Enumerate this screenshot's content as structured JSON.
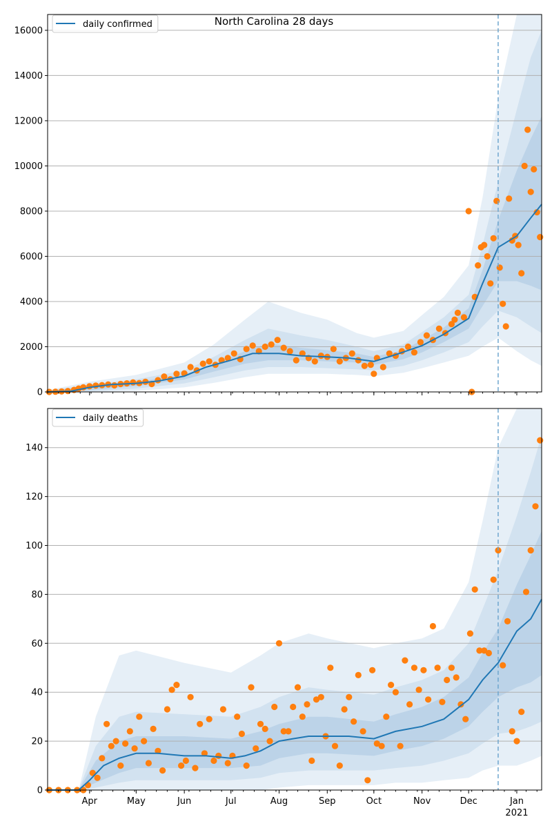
{
  "figure_title": "North Carolina 28 days",
  "colors": {
    "line": "#1f77b4",
    "points": "#ff7f0e",
    "band_outer": "#e6eff7",
    "band_mid": "#d2e2f0",
    "band_inner": "#bcd3e8",
    "grid": "#b0b0b0",
    "forecast_marker": "#6fa6cf"
  },
  "x_axis": {
    "month_ticks": [
      "Apr",
      "May",
      "Jun",
      "Jul",
      "Aug",
      "Sep",
      "Oct",
      "Nov",
      "Dec",
      "Jan"
    ],
    "year_label": "2021"
  },
  "chart_data": [
    {
      "type": "line",
      "legend": "daily confirmed",
      "legend_position": "top-left",
      "grid": "horizontal",
      "x_range": [
        "2020-03-05",
        "2021-01-17"
      ],
      "forecast_start": "2020-12-20",
      "ylim": [
        0,
        16700
      ],
      "yticks": [
        "0",
        "2000",
        "4000",
        "6000",
        "8000",
        "10000",
        "12000",
        "14000",
        "16000"
      ],
      "series": [
        {
          "kind": "line",
          "x": [
            "2020-03-05",
            "2020-03-20",
            "2020-04-01",
            "2020-04-15",
            "2020-05-01",
            "2020-05-15",
            "2020-06-01",
            "2020-06-15",
            "2020-07-01",
            "2020-07-15",
            "2020-08-01",
            "2020-08-15",
            "2020-09-01",
            "2020-09-15",
            "2020-10-01",
            "2020-10-15",
            "2020-11-01",
            "2020-11-15",
            "2020-12-01",
            "2020-12-10",
            "2020-12-20",
            "2021-01-01",
            "2021-01-10",
            "2021-01-17"
          ],
          "values": [
            0,
            30,
            200,
            330,
            380,
            480,
            700,
            1100,
            1400,
            1700,
            1700,
            1600,
            1550,
            1500,
            1350,
            1650,
            2050,
            2550,
            3250,
            4800,
            6400,
            6900,
            7700,
            8300
          ]
        },
        {
          "kind": "band",
          "level": "outer",
          "x": [
            "2020-03-05",
            "2020-04-01",
            "2020-05-01",
            "2020-06-01",
            "2020-06-20",
            "2020-07-10",
            "2020-07-25",
            "2020-08-15",
            "2020-09-01",
            "2020-09-20",
            "2020-10-01",
            "2020-10-20",
            "2020-11-01",
            "2020-11-15",
            "2020-12-01",
            "2020-12-10",
            "2020-12-20",
            "2021-01-01",
            "2021-01-10",
            "2021-01-17"
          ],
          "upper": [
            80,
            450,
            750,
            1300,
            2100,
            3200,
            4000,
            3500,
            3200,
            2600,
            2400,
            2700,
            3400,
            4200,
            5600,
            8600,
            13000,
            16700,
            16700,
            16700
          ],
          "lower": [
            0,
            0,
            50,
            200,
            400,
            650,
            800,
            800,
            800,
            750,
            700,
            850,
            1050,
            1300,
            1600,
            2000,
            2400,
            1800,
            1400,
            1150
          ]
        },
        {
          "kind": "band",
          "level": "mid",
          "x": [
            "2020-03-05",
            "2020-04-01",
            "2020-05-01",
            "2020-06-01",
            "2020-06-20",
            "2020-07-10",
            "2020-07-25",
            "2020-08-15",
            "2020-09-01",
            "2020-09-20",
            "2020-10-01",
            "2020-10-20",
            "2020-11-01",
            "2020-11-15",
            "2020-12-01",
            "2020-12-10",
            "2020-12-20",
            "2021-01-01",
            "2021-01-10",
            "2021-01-17"
          ],
          "upper": [
            50,
            330,
            560,
            950,
            1550,
            2300,
            2800,
            2500,
            2300,
            2000,
            1800,
            2100,
            2650,
            3300,
            4300,
            6500,
            9300,
            12500,
            14800,
            16000
          ],
          "lower": [
            0,
            20,
            150,
            380,
            650,
            950,
            1100,
            1100,
            1050,
            1000,
            950,
            1150,
            1400,
            1750,
            2200,
            2900,
            3600,
            3300,
            2900,
            2600
          ]
        },
        {
          "kind": "band",
          "level": "inner",
          "x": [
            "2020-03-05",
            "2020-04-01",
            "2020-05-01",
            "2020-06-01",
            "2020-06-20",
            "2020-07-10",
            "2020-07-25",
            "2020-08-15",
            "2020-09-01",
            "2020-09-20",
            "2020-10-01",
            "2020-10-20",
            "2020-11-01",
            "2020-11-15",
            "2020-12-01",
            "2020-12-10",
            "2020-12-20",
            "2021-01-01",
            "2021-01-10",
            "2021-01-17"
          ],
          "upper": [
            30,
            250,
            430,
            780,
            1250,
            1800,
            2150,
            1950,
            1850,
            1700,
            1550,
            1850,
            2300,
            2850,
            3700,
            5400,
            7600,
            9800,
            11200,
            12200
          ],
          "lower": [
            0,
            80,
            260,
            550,
            900,
            1250,
            1400,
            1400,
            1350,
            1300,
            1200,
            1450,
            1750,
            2200,
            2800,
            3800,
            4900,
            4900,
            4700,
            4500
          ]
        }
      ],
      "points": {
        "x": [
          "2020-03-06",
          "2020-03-10",
          "2020-03-14",
          "2020-03-18",
          "2020-03-22",
          "2020-03-25",
          "2020-03-28",
          "2020-04-01",
          "2020-04-05",
          "2020-04-09",
          "2020-04-13",
          "2020-04-17",
          "2020-04-21",
          "2020-04-25",
          "2020-04-29",
          "2020-05-03",
          "2020-05-07",
          "2020-05-11",
          "2020-05-15",
          "2020-05-19",
          "2020-05-23",
          "2020-05-27",
          "2020-06-01",
          "2020-06-05",
          "2020-06-09",
          "2020-06-13",
          "2020-06-17",
          "2020-06-21",
          "2020-06-25",
          "2020-06-29",
          "2020-07-03",
          "2020-07-07",
          "2020-07-11",
          "2020-07-15",
          "2020-07-19",
          "2020-07-23",
          "2020-07-27",
          "2020-07-31",
          "2020-08-04",
          "2020-08-08",
          "2020-08-12",
          "2020-08-16",
          "2020-08-20",
          "2020-08-24",
          "2020-08-28",
          "2020-09-01",
          "2020-09-05",
          "2020-09-09",
          "2020-09-13",
          "2020-09-17",
          "2020-09-21",
          "2020-09-25",
          "2020-09-29",
          "2020-10-01",
          "2020-10-03",
          "2020-10-07",
          "2020-10-11",
          "2020-10-15",
          "2020-10-19",
          "2020-10-23",
          "2020-10-27",
          "2020-10-31",
          "2020-11-04",
          "2020-11-08",
          "2020-11-12",
          "2020-11-16",
          "2020-11-20",
          "2020-11-22",
          "2020-11-24",
          "2020-11-28",
          "2020-12-01",
          "2020-12-03",
          "2020-12-05",
          "2020-12-07",
          "2020-12-09",
          "2020-12-11",
          "2020-12-13",
          "2020-12-15",
          "2020-12-17",
          "2020-12-19",
          "2020-12-21",
          "2020-12-23",
          "2020-12-25",
          "2020-12-27",
          "2020-12-29",
          "2020-12-31",
          "2021-01-02",
          "2021-01-04",
          "2021-01-06",
          "2021-01-08",
          "2021-01-10",
          "2021-01-12",
          "2021-01-14",
          "2021-01-16"
        ],
        "values": [
          0,
          10,
          20,
          40,
          90,
          150,
          200,
          250,
          280,
          300,
          330,
          290,
          350,
          380,
          420,
          390,
          450,
          350,
          520,
          680,
          560,
          800,
          820,
          1100,
          950,
          1250,
          1350,
          1200,
          1400,
          1500,
          1700,
          1450,
          1900,
          2050,
          1800,
          2000,
          2100,
          2300,
          1950,
          1800,
          1400,
          1700,
          1500,
          1350,
          1600,
          1550,
          1900,
          1350,
          1500,
          1700,
          1400,
          1150,
          1200,
          800,
          1500,
          1100,
          1700,
          1600,
          1800,
          2000,
          1750,
          2200,
          2500,
          2300,
          2800,
          2600,
          3000,
          3200,
          3500,
          3300,
          8000,
          0,
          4200,
          5600,
          6400,
          6500,
          6000,
          4800,
          6800,
          8450,
          5500,
          3900,
          2900,
          8550,
          6700,
          6900,
          6500,
          5250,
          10000,
          11600,
          8850,
          9850,
          7950,
          6850
        ]
      }
    },
    {
      "type": "line",
      "legend": "daily deaths",
      "legend_position": "top-left",
      "grid": "horizontal",
      "x_range": [
        "2020-03-05",
        "2021-01-17"
      ],
      "forecast_start": "2020-12-20",
      "ylim": [
        0,
        156
      ],
      "yticks": [
        "0",
        "20",
        "40",
        "60",
        "80",
        "100",
        "120",
        "140"
      ],
      "series": [
        {
          "kind": "line",
          "x": [
            "2020-03-05",
            "2020-03-25",
            "2020-04-01",
            "2020-04-10",
            "2020-04-20",
            "2020-05-01",
            "2020-05-15",
            "2020-06-01",
            "2020-06-15",
            "2020-07-01",
            "2020-07-10",
            "2020-07-20",
            "2020-08-01",
            "2020-08-10",
            "2020-08-20",
            "2020-09-01",
            "2020-09-15",
            "2020-10-01",
            "2020-10-15",
            "2020-11-01",
            "2020-11-15",
            "2020-12-01",
            "2020-12-10",
            "2020-12-20",
            "2021-01-01",
            "2021-01-10",
            "2021-01-17"
          ],
          "values": [
            0,
            0,
            4,
            10,
            13,
            15,
            15,
            14,
            14,
            13,
            14,
            16,
            20,
            21,
            22,
            22,
            22,
            21,
            24,
            26,
            29,
            37,
            45,
            52,
            65,
            70,
            78
          ]
        },
        {
          "kind": "band",
          "level": "outer",
          "x": [
            "2020-03-05",
            "2020-03-25",
            "2020-04-05",
            "2020-04-20",
            "2020-05-01",
            "2020-06-01",
            "2020-07-01",
            "2020-07-20",
            "2020-08-01",
            "2020-08-20",
            "2020-09-01",
            "2020-10-01",
            "2020-10-15",
            "2020-11-01",
            "2020-11-15",
            "2020-12-01",
            "2020-12-10",
            "2020-12-20",
            "2021-01-01",
            "2021-01-10",
            "2021-01-17"
          ],
          "upper": [
            0,
            0,
            30,
            55,
            57,
            52,
            48,
            55,
            60,
            64,
            62,
            58,
            60,
            62,
            66,
            85,
            110,
            140,
            156,
            156,
            156
          ],
          "lower": [
            0,
            0,
            0,
            0,
            0,
            0,
            0,
            0,
            1,
            2,
            2,
            2,
            3,
            3,
            4,
            5,
            8,
            10,
            10,
            12,
            14
          ]
        },
        {
          "kind": "band",
          "level": "mid",
          "x": [
            "2020-03-05",
            "2020-03-25",
            "2020-04-05",
            "2020-04-20",
            "2020-05-01",
            "2020-06-01",
            "2020-07-01",
            "2020-07-20",
            "2020-08-01",
            "2020-08-20",
            "2020-09-01",
            "2020-10-01",
            "2020-10-15",
            "2020-11-01",
            "2020-11-15",
            "2020-12-01",
            "2020-12-10",
            "2020-12-20",
            "2021-01-01",
            "2021-01-10",
            "2021-01-17"
          ],
          "upper": [
            0,
            0,
            18,
            30,
            32,
            31,
            30,
            34,
            38,
            42,
            41,
            39,
            42,
            45,
            49,
            60,
            74,
            90,
            112,
            130,
            145
          ],
          "lower": [
            0,
            0,
            1,
            3,
            4,
            4,
            4,
            5,
            7,
            8,
            8,
            8,
            9,
            10,
            12,
            15,
            19,
            23,
            24,
            26,
            28
          ]
        },
        {
          "kind": "band",
          "level": "inner",
          "x": [
            "2020-03-05",
            "2020-03-25",
            "2020-04-05",
            "2020-04-20",
            "2020-05-01",
            "2020-06-01",
            "2020-07-01",
            "2020-07-20",
            "2020-08-01",
            "2020-08-20",
            "2020-09-01",
            "2020-10-01",
            "2020-10-15",
            "2020-11-01",
            "2020-11-15",
            "2020-12-01",
            "2020-12-10",
            "2020-12-20",
            "2021-01-01",
            "2021-01-10",
            "2021-01-17"
          ],
          "upper": [
            0,
            0,
            12,
            20,
            22,
            22,
            21,
            24,
            27,
            30,
            30,
            28,
            31,
            34,
            38,
            46,
            56,
            66,
            84,
            96,
            106
          ],
          "lower": [
            0,
            0,
            3,
            7,
            9,
            9,
            9,
            10,
            13,
            15,
            15,
            14,
            16,
            18,
            21,
            26,
            32,
            38,
            42,
            44,
            47
          ]
        }
      ],
      "points": {
        "x": [
          "2020-03-06",
          "2020-03-12",
          "2020-03-18",
          "2020-03-24",
          "2020-03-28",
          "2020-03-31",
          "2020-04-03",
          "2020-04-06",
          "2020-04-09",
          "2020-04-12",
          "2020-04-15",
          "2020-04-18",
          "2020-04-21",
          "2020-04-24",
          "2020-04-27",
          "2020-04-30",
          "2020-05-03",
          "2020-05-06",
          "2020-05-09",
          "2020-05-12",
          "2020-05-15",
          "2020-05-18",
          "2020-05-21",
          "2020-05-24",
          "2020-05-27",
          "2020-05-30",
          "2020-06-02",
          "2020-06-05",
          "2020-06-08",
          "2020-06-11",
          "2020-06-14",
          "2020-06-17",
          "2020-06-20",
          "2020-06-23",
          "2020-06-26",
          "2020-06-29",
          "2020-07-02",
          "2020-07-05",
          "2020-07-08",
          "2020-07-11",
          "2020-07-14",
          "2020-07-17",
          "2020-07-20",
          "2020-07-23",
          "2020-07-26",
          "2020-07-29",
          "2020-08-01",
          "2020-08-04",
          "2020-08-07",
          "2020-08-10",
          "2020-08-13",
          "2020-08-16",
          "2020-08-19",
          "2020-08-22",
          "2020-08-25",
          "2020-08-28",
          "2020-08-31",
          "2020-09-03",
          "2020-09-06",
          "2020-09-09",
          "2020-09-12",
          "2020-09-15",
          "2020-09-18",
          "2020-09-21",
          "2020-09-24",
          "2020-09-27",
          "2020-09-30",
          "2020-10-03",
          "2020-10-06",
          "2020-10-09",
          "2020-10-12",
          "2020-10-15",
          "2020-10-18",
          "2020-10-21",
          "2020-10-24",
          "2020-10-27",
          "2020-10-30",
          "2020-11-02",
          "2020-11-05",
          "2020-11-08",
          "2020-11-11",
          "2020-11-14",
          "2020-11-17",
          "2020-11-20",
          "2020-11-23",
          "2020-11-26",
          "2020-11-29",
          "2020-12-02",
          "2020-12-05",
          "2020-12-08",
          "2020-12-11",
          "2020-12-14",
          "2020-12-17",
          "2020-12-20",
          "2020-12-23",
          "2020-12-26",
          "2020-12-29",
          "2021-01-01",
          "2021-01-04",
          "2021-01-07",
          "2021-01-10",
          "2021-01-13",
          "2021-01-16"
        ],
        "values": [
          0,
          0,
          0,
          0,
          0,
          2,
          7,
          5,
          13,
          27,
          18,
          20,
          10,
          19,
          24,
          17,
          30,
          20,
          11,
          25,
          16,
          8,
          33,
          41,
          43,
          10,
          12,
          38,
          9,
          27,
          15,
          29,
          12,
          14,
          33,
          11,
          14,
          30,
          23,
          10,
          42,
          17,
          27,
          25,
          20,
          34,
          60,
          24,
          24,
          34,
          42,
          30,
          35,
          12,
          37,
          38,
          22,
          50,
          18,
          10,
          33,
          38,
          28,
          47,
          24,
          4,
          49,
          19,
          18,
          30,
          43,
          40,
          18,
          53,
          35,
          50,
          41,
          49,
          37,
          67,
          50,
          36,
          45,
          50,
          46,
          35,
          29,
          64,
          82,
          57,
          57,
          56,
          86,
          98,
          51,
          69,
          24,
          20,
          32,
          81,
          98,
          116,
          143
        ]
      }
    }
  ]
}
